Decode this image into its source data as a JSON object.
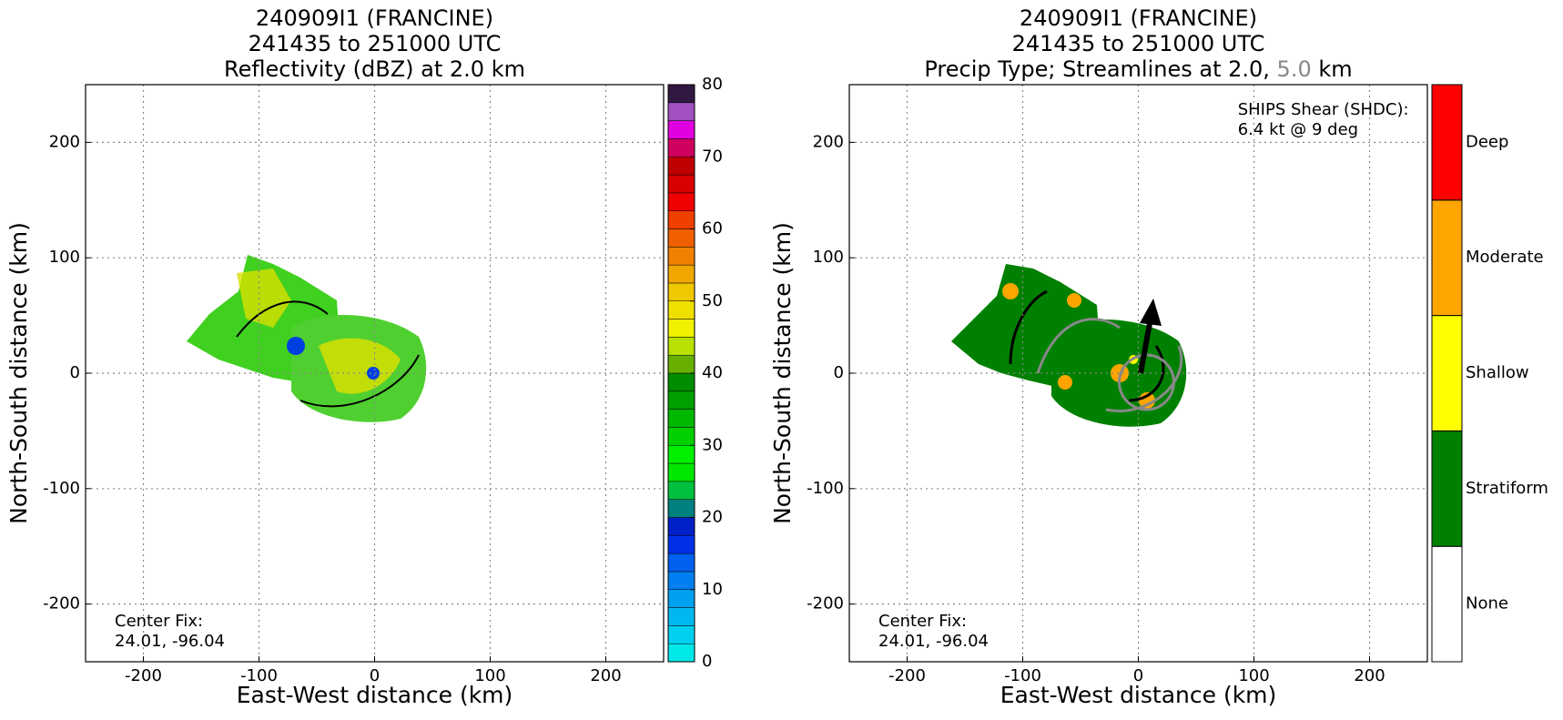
{
  "chart_data": [
    {
      "type": "heatmap",
      "title": [
        "240909I1 (FRANCINE)",
        "241435 to 251000 UTC",
        "Reflectivity (dBZ) at 2.0 km"
      ],
      "xlabel": "East-West distance (km)",
      "ylabel": "North-South distance (km)",
      "xlim": [
        -250,
        250
      ],
      "ylim": [
        -250,
        250
      ],
      "xticks": [
        -200,
        -100,
        0,
        100,
        200
      ],
      "yticks": [
        -200,
        -100,
        0,
        100,
        200
      ],
      "grid": true,
      "annotation": [
        "Center Fix:",
        "24.01, -96.04"
      ],
      "colorbar": {
        "lim": [
          0,
          80
        ],
        "ticks": [
          0,
          10,
          20,
          30,
          40,
          50,
          60,
          70,
          80
        ],
        "colors": [
          "#00e8e8",
          "#00d0f0",
          "#00b8f0",
          "#00a0f0",
          "#0080f0",
          "#0060f0",
          "#0030e8",
          "#0020c8",
          "#008080",
          "#00c040",
          "#00e800",
          "#00f000",
          "#00d000",
          "#00b800",
          "#00a000",
          "#008c00",
          "#68b000",
          "#b8e000",
          "#f0f000",
          "#f0e000",
          "#f0c800",
          "#f0a800",
          "#f08000",
          "#f06000",
          "#f04000",
          "#f00000",
          "#d80000",
          "#c00000",
          "#d00060",
          "#e000e0",
          "#a050c0",
          "#301840"
        ]
      }
    },
    {
      "type": "categorical-map",
      "title": [
        "240909I1 (FRANCINE)",
        "241435 to 251000 UTC"
      ],
      "title_parts": [
        "Precip Type; Streamlines at 2.0,",
        "5.0",
        "km"
      ],
      "xlabel": "East-West distance (km)",
      "ylabel": "North-South distance (km)",
      "xlim": [
        -250,
        250
      ],
      "ylim": [
        -250,
        250
      ],
      "xticks": [
        -200,
        -100,
        0,
        100,
        200
      ],
      "yticks": [
        -200,
        -100,
        0,
        100,
        200
      ],
      "grid": true,
      "annotation": [
        "Center Fix:",
        "24.01, -96.04"
      ],
      "shear_annotation": [
        "SHIPS Shear (SHDC):",
        "6.4 kt @ 9 deg"
      ],
      "categories": [
        "None",
        "Stratiform",
        "Shallow",
        "Moderate",
        "Deep"
      ],
      "colors": [
        "#ffffff",
        "#008000",
        "#ffff00",
        "#ffa500",
        "#ff0000"
      ]
    }
  ]
}
